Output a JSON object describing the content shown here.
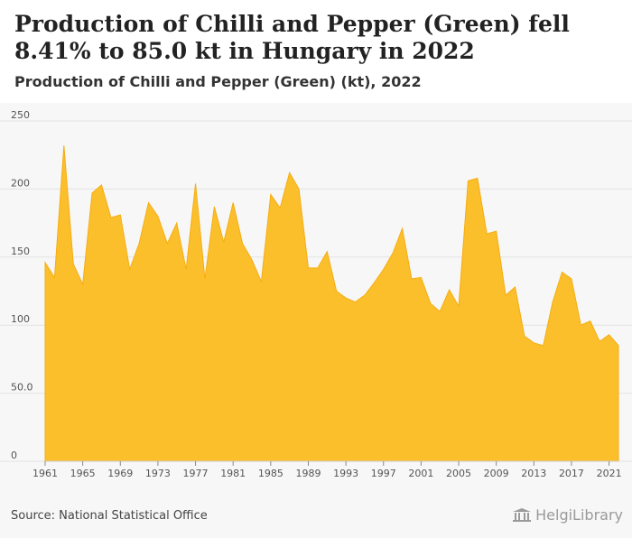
{
  "header": {
    "title": "Production of Chilli and Pepper (Green) fell 8.41% to 85.0 kt in Hungary in 2022",
    "subtitle": "Production of Chilli and Pepper (Green) (kt), 2022"
  },
  "footer": {
    "source": "Source: National Statistical Office",
    "logo_text": "HelgiLibrary"
  },
  "colors": {
    "area_fill": "#fbbf2c",
    "area_stroke": "#f5ad10",
    "grid": "#e3e3e3",
    "plot_bg": "#f7f7f7"
  },
  "chart_data": {
    "type": "area",
    "title": "Production of Chilli and Pepper (Green) (kt), 2022",
    "xlabel": "",
    "ylabel": "",
    "ylim": [
      0,
      250
    ],
    "grid": true,
    "legend": "none",
    "yticks": [
      0,
      50,
      100,
      150,
      200,
      250
    ],
    "ytick_labels": [
      "0",
      "50.0",
      "100",
      "150",
      "200",
      "250"
    ],
    "xticks": [
      1961,
      1965,
      1969,
      1973,
      1977,
      1981,
      1985,
      1989,
      1993,
      1997,
      2001,
      2005,
      2009,
      2013,
      2017,
      2021
    ],
    "xtick_labels": [
      "1961",
      "1965",
      "1969",
      "1973",
      "1977",
      "1981",
      "1985",
      "1989",
      "1993",
      "1997",
      "2001",
      "2005",
      "2009",
      "2013",
      "2017",
      "2021"
    ],
    "x": [
      1961,
      1962,
      1963,
      1964,
      1965,
      1966,
      1967,
      1968,
      1969,
      1970,
      1971,
      1972,
      1973,
      1974,
      1975,
      1976,
      1977,
      1978,
      1979,
      1980,
      1981,
      1982,
      1983,
      1984,
      1985,
      1986,
      1987,
      1988,
      1989,
      1990,
      1991,
      1992,
      1993,
      1994,
      1995,
      1996,
      1997,
      1998,
      1999,
      2000,
      2001,
      2002,
      2003,
      2004,
      2005,
      2006,
      2007,
      2008,
      2009,
      2010,
      2011,
      2012,
      2013,
      2014,
      2015,
      2016,
      2017,
      2018,
      2019,
      2020,
      2021,
      2022
    ],
    "series": [
      {
        "values": [
          146,
          135,
          232,
          145,
          130,
          197,
          203,
          179,
          181,
          141,
          160,
          190,
          180,
          160,
          175,
          141,
          204,
          134,
          187,
          161,
          190,
          160,
          148,
          132,
          196,
          186,
          212,
          200,
          142,
          142,
          154,
          125,
          120,
          117,
          122,
          131,
          141,
          153,
          171,
          134,
          135,
          116,
          110,
          126,
          114,
          206,
          208,
          167,
          169,
          122,
          128,
          92,
          87,
          85,
          117,
          139,
          134,
          100,
          103,
          88,
          93,
          85
        ]
      }
    ]
  }
}
